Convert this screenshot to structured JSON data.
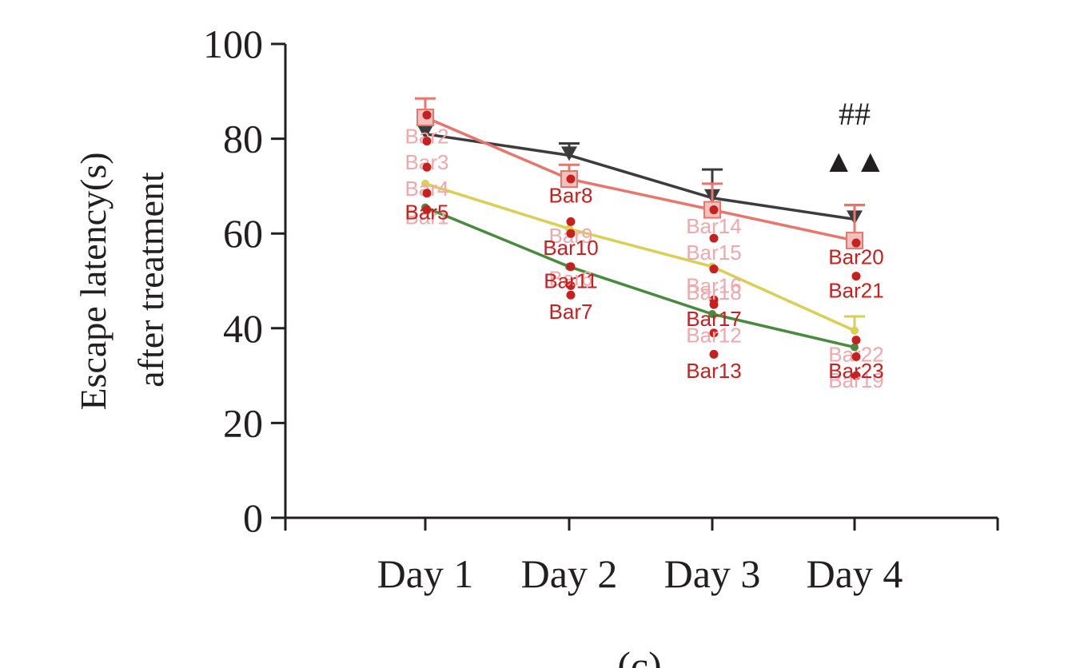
{
  "chart_data": {
    "type": "line",
    "ylabel_lines": [
      "Escape latency(s)",
      "after treatment"
    ],
    "xlabel": "",
    "categories": [
      "Day 1",
      "Day 2",
      "Day 3",
      "Day 4"
    ],
    "ylim": [
      0,
      100
    ],
    "yticks": [
      0,
      20,
      40,
      60,
      80,
      100
    ],
    "ytick_labels": [
      "0",
      "20",
      "40",
      "60",
      "80",
      "100"
    ],
    "grid": false,
    "panel_label": "(c)",
    "series": [
      {
        "color": "#3c3c3c",
        "marker": "triangle-down",
        "values": [
          81,
          76.5,
          67.5,
          63
        ],
        "errors": [
          0,
          2.5,
          6,
          3
        ]
      },
      {
        "color": "#e8766c",
        "marker": "square",
        "values": [
          84.5,
          71.5,
          65,
          58.5
        ],
        "errors": [
          4,
          3,
          5.5,
          7.5
        ]
      },
      {
        "color": "#d9cf55",
        "marker": "circle",
        "values": [
          70.5,
          61,
          53,
          39.5
        ],
        "errors": [
          0,
          0,
          0,
          3
        ]
      },
      {
        "color": "#4a8a3e",
        "marker": "circle",
        "values": [
          65.5,
          53,
          43,
          36
        ],
        "errors": [
          0,
          0,
          0,
          0
        ]
      }
    ],
    "annotations": [
      {
        "text": "##",
        "category": "Day 4",
        "y": 83
      },
      {
        "text": "▲▲",
        "category": "Day 4",
        "y": 73
      }
    ],
    "bar_markers": [
      {
        "label": "Bar1",
        "category": "Day 1",
        "y": 65,
        "label_y": 62,
        "faded": true
      },
      {
        "label": "Bar2",
        "category": "Day 1",
        "y": 85,
        "label_y": 79,
        "faded": true
      },
      {
        "label": "Bar3",
        "category": "Day 1",
        "y": 79.5,
        "label_y": 73.5,
        "faded": true
      },
      {
        "label": "Bar4",
        "category": "Day 1",
        "y": 74,
        "label_y": 68,
        "faded": true
      },
      {
        "label": "Bar5",
        "category": "Day 1",
        "y": 68.5,
        "label_y": 63,
        "faded": false
      },
      {
        "label": "Bar6",
        "category": "Day 2",
        "y": 49,
        "label_y": 49,
        "faded": true
      },
      {
        "label": "Bar7",
        "category": "Day 2",
        "y": 47,
        "label_y": 42,
        "faded": false
      },
      {
        "label": "Bar8",
        "category": "Day 2",
        "y": 71.5,
        "label_y": 66.5,
        "faded": false
      },
      {
        "label": "Bar9",
        "category": "Day 2",
        "y": 62.5,
        "label_y": 58,
        "faded": true
      },
      {
        "label": "Bar10",
        "category": "Day 2",
        "y": 60,
        "label_y": 55.5,
        "faded": false
      },
      {
        "label": "Bar11",
        "category": "Day 2",
        "y": 53,
        "label_y": 48.5,
        "faded": false
      },
      {
        "label": "Bar12",
        "category": "Day 3",
        "y": 39,
        "label_y": 37,
        "faded": true
      },
      {
        "label": "Bar13",
        "category": "Day 3",
        "y": 34.5,
        "label_y": 29.5,
        "faded": false
      },
      {
        "label": "Bar14",
        "category": "Day 3",
        "y": 65,
        "label_y": 60,
        "faded": true
      },
      {
        "label": "Bar15",
        "category": "Day 3",
        "y": 59,
        "label_y": 54.5,
        "faded": true
      },
      {
        "label": "Bar16",
        "category": "Day 3",
        "y": 52.5,
        "label_y": 47.5,
        "faded": true
      },
      {
        "label": "Bar17",
        "category": "Day 3",
        "y": 45,
        "label_y": 40.5,
        "faded": false
      },
      {
        "label": "Bar18",
        "category": "Day 3",
        "y": 46,
        "label_y": 46,
        "faded": true
      },
      {
        "label": "Bar19",
        "category": "Day 4",
        "y": 30,
        "label_y": 27.5,
        "faded": true
      },
      {
        "label": "Bar20",
        "category": "Day 4",
        "y": 58,
        "label_y": 53.5,
        "faded": false
      },
      {
        "label": "Bar21",
        "category": "Day 4",
        "y": 51,
        "label_y": 46.5,
        "faded": false
      },
      {
        "label": "Bar22",
        "category": "Day 4",
        "y": 37.5,
        "label_y": 33,
        "faded": true
      },
      {
        "label": "Bar23",
        "category": "Day 4",
        "y": 34,
        "label_y": 29.5,
        "faded": false
      }
    ],
    "colors": {
      "axis": "#231f20",
      "marker": "#c8201e",
      "label": "#c8201e",
      "label_faded": "#f0a8ac"
    }
  }
}
